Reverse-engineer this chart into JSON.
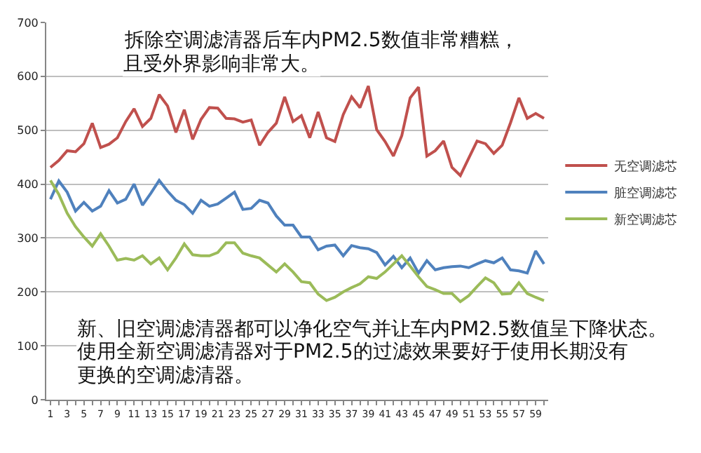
{
  "chart_data": {
    "type": "line",
    "x": [
      1,
      2,
      3,
      4,
      5,
      6,
      7,
      8,
      9,
      10,
      11,
      12,
      13,
      14,
      15,
      16,
      17,
      18,
      19,
      20,
      21,
      22,
      23,
      24,
      25,
      26,
      27,
      28,
      29,
      30,
      31,
      32,
      33,
      34,
      35,
      36,
      37,
      38,
      39,
      40,
      41,
      42,
      43,
      44,
      45,
      46,
      47,
      48,
      49,
      50,
      51,
      52,
      53,
      54,
      55,
      56,
      57,
      58,
      59,
      60
    ],
    "series": [
      {
        "name": "无空调滤芯",
        "color": "#c0504d",
        "values": [
          431,
          444,
          462,
          460,
          475,
          513,
          468,
          474,
          486,
          516,
          540,
          507,
          522,
          566,
          545,
          496,
          538,
          483,
          520,
          542,
          541,
          522,
          521,
          515,
          519,
          472,
          496,
          513,
          562,
          516,
          527,
          486,
          534,
          486,
          479,
          529,
          562,
          542,
          582,
          501,
          479,
          452,
          490,
          560,
          580,
          452,
          462,
          480,
          431,
          416,
          448,
          480,
          475,
          457,
          472,
          514,
          560,
          522,
          531,
          522
        ]
      },
      {
        "name": "脏空调滤芯",
        "color": "#4f81bd",
        "values": [
          372,
          406,
          385,
          350,
          366,
          350,
          359,
          388,
          365,
          372,
          400,
          361,
          383,
          407,
          387,
          370,
          362,
          346,
          370,
          359,
          363,
          374,
          385,
          353,
          355,
          370,
          365,
          341,
          324,
          324,
          302,
          302,
          278,
          285,
          287,
          267,
          286,
          282,
          280,
          273,
          250,
          266,
          245,
          263,
          235,
          258,
          241,
          245,
          247,
          248,
          245,
          252,
          258,
          254,
          263,
          241,
          239,
          235,
          276,
          252
        ]
      },
      {
        "name": "新空调滤芯",
        "color": "#9bbb59",
        "values": [
          407,
          381,
          346,
          321,
          302,
          285,
          308,
          285,
          259,
          262,
          259,
          267,
          252,
          263,
          241,
          263,
          289,
          269,
          267,
          267,
          273,
          291,
          291,
          272,
          267,
          263,
          250,
          237,
          252,
          237,
          219,
          217,
          196,
          184,
          190,
          200,
          208,
          215,
          228,
          225,
          237,
          252,
          267,
          248,
          228,
          210,
          204,
          197,
          197,
          182,
          193,
          210,
          226,
          217,
          196,
          197,
          217,
          197,
          190,
          184
        ]
      }
    ],
    "xlim": [
      0.5,
      60.5
    ],
    "xticks": [
      1,
      {
        "value": 2,
        "label": null
      },
      3,
      {
        "value": 4,
        "label": null
      },
      5,
      {
        "value": 6,
        "label": null
      },
      7,
      {
        "value": 8,
        "label": null
      },
      9,
      {
        "value": 10,
        "label": null
      },
      11,
      {
        "value": 12,
        "label": null
      },
      13,
      {
        "value": 14,
        "label": null
      },
      15,
      {
        "value": 16,
        "label": null
      },
      17,
      {
        "value": 18,
        "label": null
      },
      19,
      {
        "value": 20,
        "label": null
      },
      21,
      {
        "value": 22,
        "label": null
      },
      23,
      {
        "value": 24,
        "label": null
      },
      25,
      {
        "value": 26,
        "label": null
      },
      27,
      {
        "value": 28,
        "label": null
      },
      29,
      {
        "value": 30,
        "label": null
      },
      31,
      {
        "value": 32,
        "label": null
      },
      33,
      {
        "value": 34,
        "label": null
      },
      35,
      {
        "value": 36,
        "label": null
      },
      37,
      {
        "value": 38,
        "label": null
      },
      39,
      {
        "value": 40,
        "label": null
      },
      41,
      {
        "value": 42,
        "label": null
      },
      43,
      {
        "value": 44,
        "label": null
      },
      45,
      {
        "value": 46,
        "label": null
      },
      47,
      {
        "value": 48,
        "label": null
      },
      49,
      {
        "value": 50,
        "label": null
      },
      51,
      {
        "value": 52,
        "label": null
      },
      53,
      {
        "value": 54,
        "label": null
      },
      55,
      {
        "value": 56,
        "label": null
      },
      57,
      {
        "value": 58,
        "label": null
      },
      59,
      {
        "value": 60,
        "label": null
      }
    ],
    "ylim": [
      0,
      700
    ],
    "yticks": [
      0,
      100,
      200,
      300,
      400,
      500,
      600,
      700
    ],
    "grid": "y",
    "legend": "right",
    "marker": "none",
    "line_style": "solid",
    "annotations": [
      "拆除空调滤清器后车内PM2.5数值非常糟糕，",
      "且受外界影响非常大。",
      "新、旧空调滤清器都可以净化空气并让车内PM2.5数值呈下降状态。",
      "使用全新空调滤清器对于PM2.5的过滤效果要好于使用长期没有",
      "更换的空调滤清器。"
    ]
  }
}
